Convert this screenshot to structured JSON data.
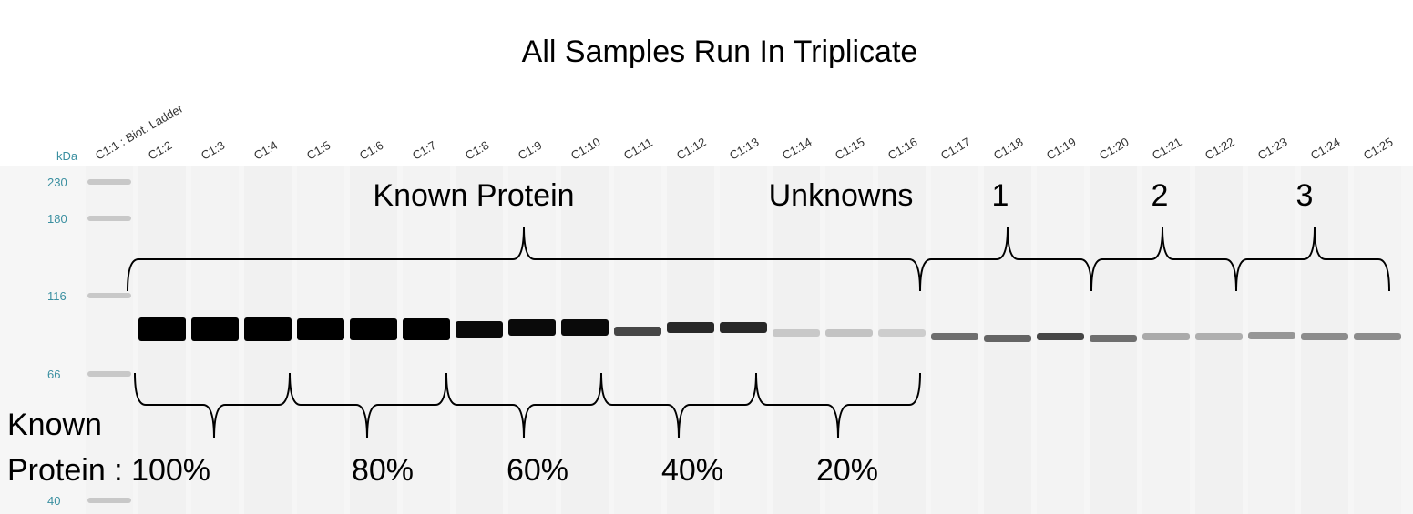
{
  "title": "All Samples Run In Triplicate",
  "axis_label": "kDa",
  "markers": [
    "230",
    "180",
    "116",
    "66",
    "40"
  ],
  "lanes": [
    "C1:1 : Biot. Ladder",
    "C1:2",
    "C1:3",
    "C1:4",
    "C1:5",
    "C1:6",
    "C1:7",
    "C1:8",
    "C1:9",
    "C1:10",
    "C1:11",
    "C1:12",
    "C1:13",
    "C1:14",
    "C1:15",
    "C1:16",
    "C1:17",
    "C1:18",
    "C1:19",
    "C1:20",
    "C1:21",
    "C1:22",
    "C1:23",
    "C1:24",
    "C1:25"
  ],
  "annotations": {
    "known_protein": "Known Protein",
    "unknowns": "Unknowns",
    "groups": [
      "1",
      "2",
      "3"
    ],
    "known_label": "Known",
    "concentration_label": "Protein : 100%",
    "percents": [
      "80%",
      "60%",
      "40%",
      "20%"
    ]
  }
}
